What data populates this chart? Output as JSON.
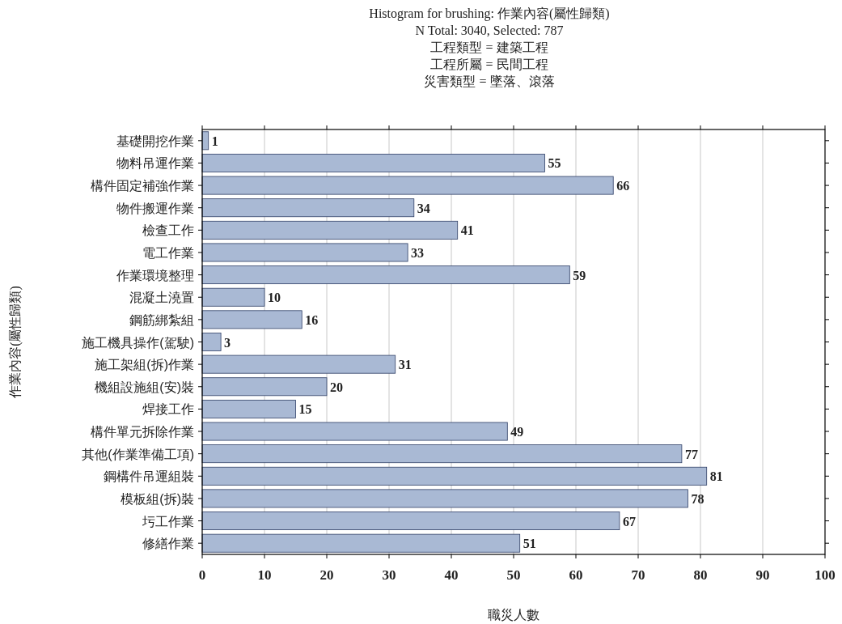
{
  "chart_data": {
    "type": "bar",
    "orientation": "horizontal",
    "title": "Histogram for brushing: 作業內容(屬性歸類)",
    "subtitle": "N Total: 3040, Selected: 787",
    "annotations": [
      "工程類型 = 建築工程",
      "工程所屬 = 民間工程",
      "災害類型 = 墜落、滾落"
    ],
    "xlabel": "職災人數",
    "ylabel": "作業內容(屬性歸類)",
    "categories": [
      "基礎開挖作業",
      "物料吊運作業",
      "構件固定補強作業",
      "物件搬運作業",
      "檢查工作",
      "電工作業",
      "作業環境整理",
      "混凝土澆置",
      "鋼筋綁紮組",
      "施工機具操作(駕駛)",
      "施工架組(拆)作業",
      "機組設施組(安)裝",
      "焊接工作",
      "構件單元拆除作業",
      "其他(作業準備工項)",
      "鋼構件吊運組裝",
      "模板組(拆)裝",
      "圬工作業",
      "修繕作業"
    ],
    "values": [
      1,
      55,
      66,
      34,
      41,
      33,
      59,
      10,
      16,
      3,
      31,
      20,
      15,
      49,
      77,
      81,
      78,
      67,
      51
    ],
    "color": "#a9b9d4",
    "xlim": [
      0,
      100
    ],
    "xticks": [
      0,
      10,
      20,
      30,
      40,
      50,
      60,
      70,
      80,
      90,
      100
    ],
    "grid": "x",
    "data_labels": true
  }
}
